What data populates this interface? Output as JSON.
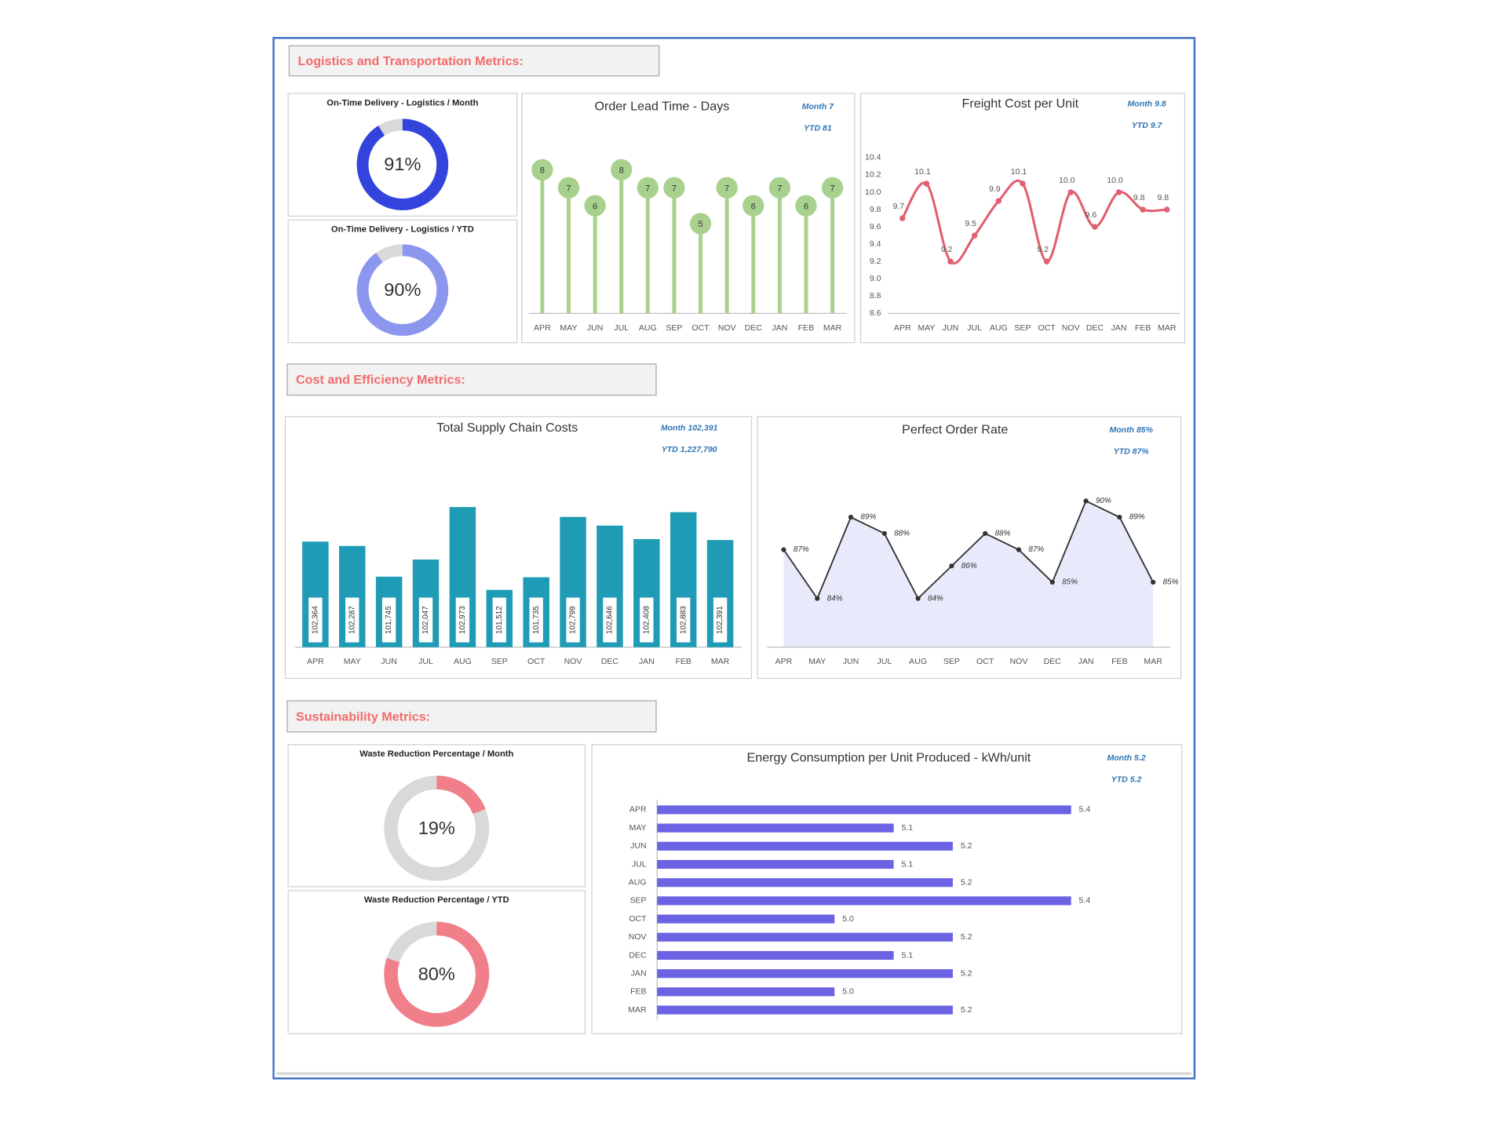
{
  "sections": [
    "Logistics and Transportation Metrics:",
    "Cost and Efficiency Metrics:",
    "Sustainability Metrics:"
  ],
  "chart_data": [
    {
      "type": "donut",
      "title": "On-Time Delivery - Logistics / Month",
      "value": 91,
      "value_label": "91%",
      "color": "#3344dd",
      "track_color": "#d9d9d9"
    },
    {
      "type": "donut",
      "title": "On-Time Delivery - Logistics / YTD",
      "value": 90,
      "value_label": "90%",
      "color": "#8c96ee",
      "track_color": "#d9d9d9"
    },
    {
      "type": "lollipop",
      "title": "Order Lead Time - Days",
      "annotations": [
        "Month 7",
        "YTD 81"
      ],
      "categories": [
        "APR",
        "MAY",
        "JUN",
        "JUL",
        "AUG",
        "SEP",
        "OCT",
        "NOV",
        "DEC",
        "JAN",
        "FEB",
        "MAR"
      ],
      "values": [
        8,
        7,
        6,
        8,
        7,
        7,
        5,
        7,
        6,
        7,
        6,
        7
      ],
      "ylim": [
        0,
        9
      ],
      "color": "#a9d18e"
    },
    {
      "type": "line",
      "title": "Freight Cost per Unit",
      "annotations": [
        "Month 9.8",
        "YTD 9.7"
      ],
      "smooth": true,
      "categories": [
        "APR",
        "MAY",
        "JUN",
        "JUL",
        "AUG",
        "SEP",
        "OCT",
        "NOV",
        "DEC",
        "JAN",
        "FEB",
        "MAR"
      ],
      "values": [
        9.7,
        10.1,
        9.2,
        9.5,
        9.9,
        10.1,
        9.2,
        10.0,
        9.6,
        10.0,
        9.8,
        9.8
      ],
      "value_labels": [
        "9.7",
        "10.1",
        "9.2",
        "9.5",
        "9.9",
        "10.1",
        "9.2",
        "10.0",
        "9.6",
        "10.0",
        "9.8",
        "9.8"
      ],
      "ylim": [
        8.6,
        10.4
      ],
      "yticks": [
        10.4,
        10.2,
        {
          "value": 10,
          "label": "10.0"
        },
        9.8,
        9.6,
        9.4,
        9.2,
        {
          "value": 9,
          "label": "9.0"
        },
        8.8,
        8.6
      ],
      "color": "#e06070"
    },
    {
      "type": "bar",
      "title": "Total Supply Chain Costs",
      "annotations": [
        "Month 102,391",
        "YTD 1,227,790"
      ],
      "categories": [
        "APR",
        "MAY",
        "JUN",
        "JUL",
        "AUG",
        "SEP",
        "OCT",
        "NOV",
        "DEC",
        "JAN",
        "FEB",
        "MAR"
      ],
      "values": [
        102364,
        102287,
        101745,
        102047,
        102973,
        101512,
        101735,
        102799,
        102646,
        102408,
        102883,
        102391
      ],
      "value_labels": [
        "102,364",
        "102,287",
        "101,745",
        "102,047",
        "102,973",
        "101,512",
        "101,735",
        "102,799",
        "102,646",
        "102,408",
        "102,883",
        "102,391"
      ],
      "ylim": [
        100500,
        103900
      ],
      "color": "#1f9bb5"
    },
    {
      "type": "area",
      "title": "Perfect Order Rate",
      "annotations": [
        "Month 85%",
        "YTD 87%"
      ],
      "categories": [
        "APR",
        "MAY",
        "JUN",
        "JUL",
        "AUG",
        "SEP",
        "OCT",
        "NOV",
        "DEC",
        "JAN",
        "FEB",
        "MAR"
      ],
      "values": [
        87,
        84,
        89,
        88,
        84,
        86,
        88,
        87,
        85,
        90,
        89,
        85
      ],
      "value_labels": [
        "87%",
        "84%",
        "89%",
        "88%",
        "84%",
        "86%",
        "88%",
        "87%",
        "85%",
        "90%",
        "89%",
        "85%"
      ],
      "ylim": [
        81,
        91
      ],
      "color": "#333333",
      "fill_color": "#e8eafb",
      "label_color": "#ff2020"
    },
    {
      "type": "donut",
      "title": "Waste Reduction Percentage / Month",
      "value": 19,
      "value_label": "19%",
      "color": "#f07f8a",
      "track_color": "#d9d9d9"
    },
    {
      "type": "donut",
      "title": "Waste Reduction Percentage / YTD",
      "value": 80,
      "value_label": "80%",
      "color": "#f07f8a",
      "track_color": "#d9d9d9"
    },
    {
      "type": "bar",
      "orientation": "horizontal",
      "title": "Energy Consumption per Unit Produced - kWh/unit",
      "annotations": [
        "Month 5.2",
        "YTD 5.2"
      ],
      "categories": [
        "APR",
        "MAY",
        "JUN",
        "JUL",
        "AUG",
        "SEP",
        "OCT",
        "NOV",
        "DEC",
        "JAN",
        "FEB",
        "MAR"
      ],
      "values": [
        5.4,
        5.1,
        5.2,
        5.1,
        5.2,
        5.4,
        5.0,
        5.2,
        5.1,
        5.2,
        5.0,
        5.2
      ],
      "value_labels": [
        "5.4",
        "5.1",
        "5.2",
        "5.1",
        "5.2",
        "5.4",
        "5.0",
        "5.2",
        "5.1",
        "5.2",
        "5.0",
        "5.2"
      ],
      "xlim": [
        4.7,
        5.5
      ],
      "color": "#6b63e3"
    }
  ]
}
